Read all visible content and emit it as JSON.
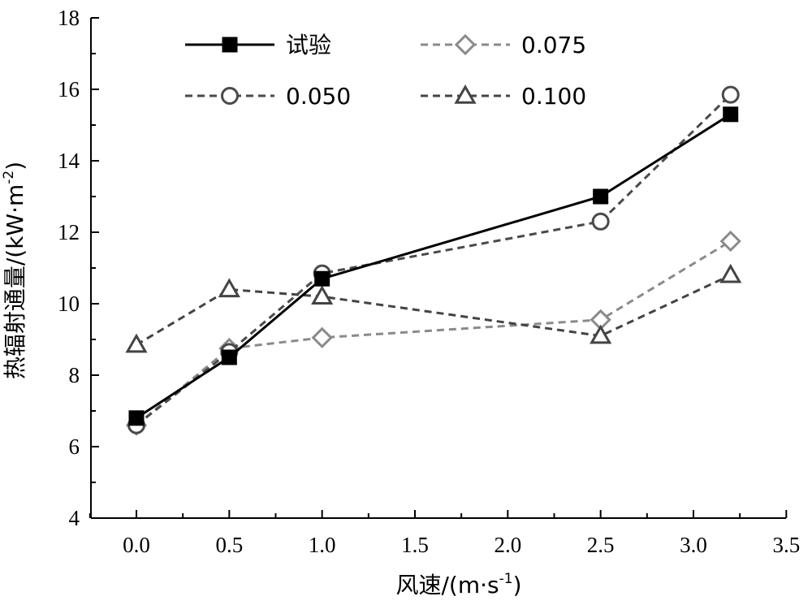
{
  "chart_data": {
    "type": "line",
    "xlabel": "风速/(m·s",
    "xlabel_sup": "-1",
    "xlabel_close": ")",
    "ylabel": "热辐射通量/(kW·m",
    "ylabel_sup": "-2",
    "ylabel_close": ")",
    "xlim": [
      -0.25,
      3.5
    ],
    "ylim": [
      4,
      18
    ],
    "xticks": [
      "0.0",
      "0.5",
      "1.0",
      "1.5",
      "2.0",
      "2.5",
      "3.0",
      "3.5"
    ],
    "yticks": [
      "4",
      "6",
      "8",
      "10",
      "12",
      "14",
      "16",
      "18"
    ],
    "grid": false,
    "legend_position": "top",
    "series": [
      {
        "name": "试验",
        "marker": "square",
        "color": "#000000",
        "dash": "solid",
        "x": [
          0,
          0.5,
          1.0,
          2.5,
          3.2
        ],
        "y": [
          6.8,
          8.5,
          10.7,
          13.0,
          15.3
        ]
      },
      {
        "name": "0.075",
        "marker": "diamond",
        "color": "#8a8a8a",
        "dash": "dashed",
        "x": [
          0,
          0.5,
          1.0,
          2.5,
          3.2
        ],
        "y": [
          6.6,
          8.75,
          9.05,
          9.55,
          11.75
        ]
      },
      {
        "name": "0.050",
        "marker": "circle",
        "color": "#4a4a4a",
        "dash": "dashed",
        "x": [
          0,
          0.5,
          1.0,
          2.5,
          3.2
        ],
        "y": [
          6.6,
          8.65,
          10.85,
          12.3,
          15.85
        ]
      },
      {
        "name": "0.100",
        "marker": "triangle",
        "color": "#444444",
        "dash": "dashed",
        "x": [
          0,
          0.5,
          1.0,
          2.5,
          3.2
        ],
        "y": [
          8.85,
          10.4,
          10.2,
          9.1,
          10.8
        ]
      }
    ]
  }
}
